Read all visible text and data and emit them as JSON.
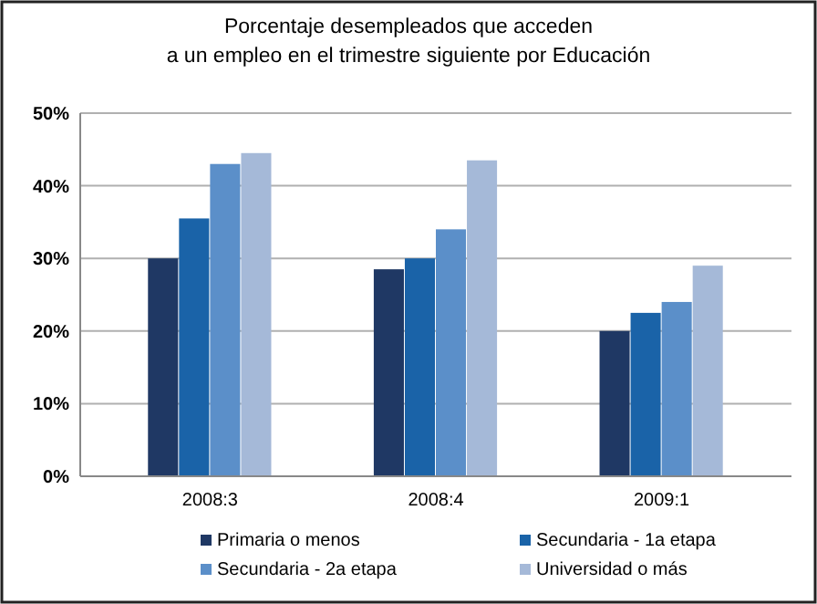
{
  "chart_data": {
    "type": "bar",
    "title": "Porcentaje desempleados que acceden\na un empleo en el trimestre siguiente por Educación",
    "categories": [
      "2008:3",
      "2008:4",
      "2009:1"
    ],
    "series": [
      {
        "name": "Primaria o menos",
        "color": "#1f3864",
        "values": [
          30,
          28.5,
          20
        ]
      },
      {
        "name": "Secundaria - 1a etapa",
        "color": "#1a63a8",
        "values": [
          35.5,
          30,
          22.5
        ]
      },
      {
        "name": "Secundaria - 2a etapa",
        "color": "#5b8fc9",
        "values": [
          43,
          34,
          24
        ]
      },
      {
        "name": "Universidad o más",
        "color": "#a5b9d8",
        "values": [
          44.5,
          43.5,
          29
        ]
      }
    ],
    "ylim": [
      0,
      50
    ],
    "yticks": [
      {
        "value": 0,
        "label": "0%"
      },
      {
        "value": 10,
        "label": "10%"
      },
      {
        "value": 20,
        "label": "20%"
      },
      {
        "value": 30,
        "label": "30%"
      },
      {
        "value": 40,
        "label": "40%"
      },
      {
        "value": 50,
        "label": "50%"
      }
    ],
    "grid": "y",
    "legend": "bottom"
  }
}
